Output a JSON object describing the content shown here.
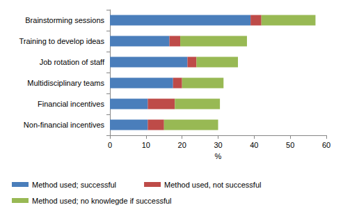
{
  "chart_data": {
    "type": "bar",
    "orientation": "horizontal",
    "stacked": true,
    "grid": false,
    "legend": "bottom",
    "xlabel": "%",
    "categories": [
      "Brainstorming sessions",
      "Training to develop ideas",
      "Job rotation of staff",
      "Multidisciplinary teams",
      "Financial incentives",
      "Non-financial incentives"
    ],
    "series": [
      {
        "name": "Method used; successful",
        "color": "#4a7ebb",
        "values": [
          39,
          16.5,
          21.5,
          17.5,
          10.5,
          10.5
        ]
      },
      {
        "name": "Method used, not successful",
        "color": "#be4b48",
        "values": [
          3,
          3,
          2.5,
          2.5,
          7.5,
          4.5
        ]
      },
      {
        "name": "Method used; no knowlegde if successful",
        "color": "#98b954",
        "values": [
          15,
          18.5,
          11.5,
          11.5,
          12.5,
          15
        ]
      }
    ],
    "xlim": [
      0,
      60
    ],
    "xticks": [
      0,
      10,
      20,
      30,
      40,
      50,
      60
    ]
  }
}
